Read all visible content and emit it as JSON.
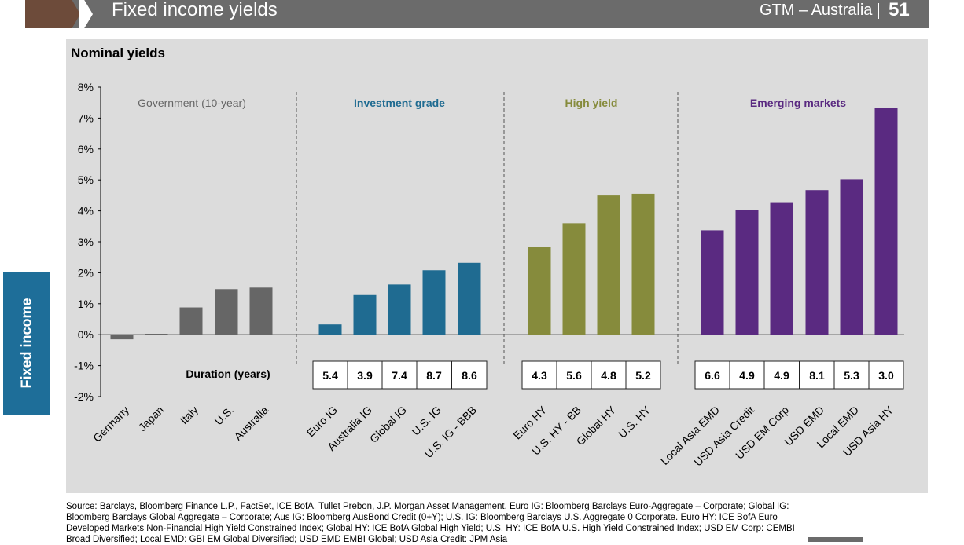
{
  "header": {
    "title": "Fixed income yields",
    "region": "GTM – Australia",
    "page": "51"
  },
  "sidebar": {
    "section_label": "Fixed income"
  },
  "source_text": "Source: Barclays, Bloomberg Finance L.P., FactSet, ICE BofA, Tullet Prebon, J.P. Morgan Asset Management. Euro IG: Bloomberg Barclays Euro-Aggregate – Corporate; Global IG: Bloomberg Barclays Global Aggregate – Corporate; Aus IG: Bloomberg AusBond Credit (0+Y); U.S. IG: Bloomberg Barclays U.S. Aggregate 0 Corporate. Euro HY: ICE BofA Euro Developed Markets Non-Financial High Yield Constrained Index; Global HY: ICE BofA Global High Yield; U.S. HY: ICE BofA U.S. High Yield Constrained Index; USD EM Corp: CEMBI Broad Diversified; Local EMD: GBI EM Global Diversified; USD EMD EMBI Global; USD Asia Credit: JPM Asia",
  "colors": {
    "government": "#666666",
    "investment_grade": "#1f6b91",
    "high_yield": "#868b3c",
    "emerging_markets": "#5a2a81",
    "header": "#6b6b6b",
    "panel": "#dcdcdc"
  },
  "chart_data": {
    "type": "bar",
    "title": "Nominal yields",
    "ylim": [
      -2,
      8
    ],
    "y_ticks": [
      "-2%",
      "-1%",
      "0%",
      "1%",
      "2%",
      "3%",
      "4%",
      "5%",
      "6%",
      "7%",
      "8%"
    ],
    "duration_label": "Duration (years)",
    "groups": [
      {
        "name": "Government (10-year)",
        "color": "#666666",
        "categories": [
          "Germany",
          "Japan",
          "Italy",
          "U.S.",
          "Australia"
        ],
        "values": [
          -0.15,
          0.03,
          0.88,
          1.47,
          1.52
        ],
        "durations": []
      },
      {
        "name": "Investment grade",
        "color": "#1f6b91",
        "categories": [
          "Euro IG",
          "Australia IG",
          "Global IG",
          "U.S. IG",
          "U.S. IG - BBB"
        ],
        "values": [
          0.33,
          1.28,
          1.62,
          2.08,
          2.32
        ],
        "durations": [
          "5.4",
          "3.9",
          "7.4",
          "8.7",
          "8.6"
        ]
      },
      {
        "name": "High yield",
        "color": "#868b3c",
        "categories": [
          "Euro HY",
          "U.S. HY - BB",
          "Global HY",
          "U.S. HY"
        ],
        "values": [
          2.83,
          3.6,
          4.52,
          4.55
        ],
        "durations": [
          "4.3",
          "5.6",
          "4.8",
          "5.2"
        ]
      },
      {
        "name": "Emerging markets",
        "color": "#5a2a81",
        "categories": [
          "Local Asia EMD",
          "USD Asia Credit",
          "USD EM Corp",
          "USD EMD",
          "Local EMD",
          "USD Asia HY"
        ],
        "values": [
          3.37,
          4.02,
          4.28,
          4.67,
          5.02,
          7.33
        ],
        "durations": [
          "6.6",
          "4.9",
          "4.9",
          "8.1",
          "5.3",
          "3.0"
        ]
      }
    ],
    "grid": false,
    "legend": "none"
  }
}
